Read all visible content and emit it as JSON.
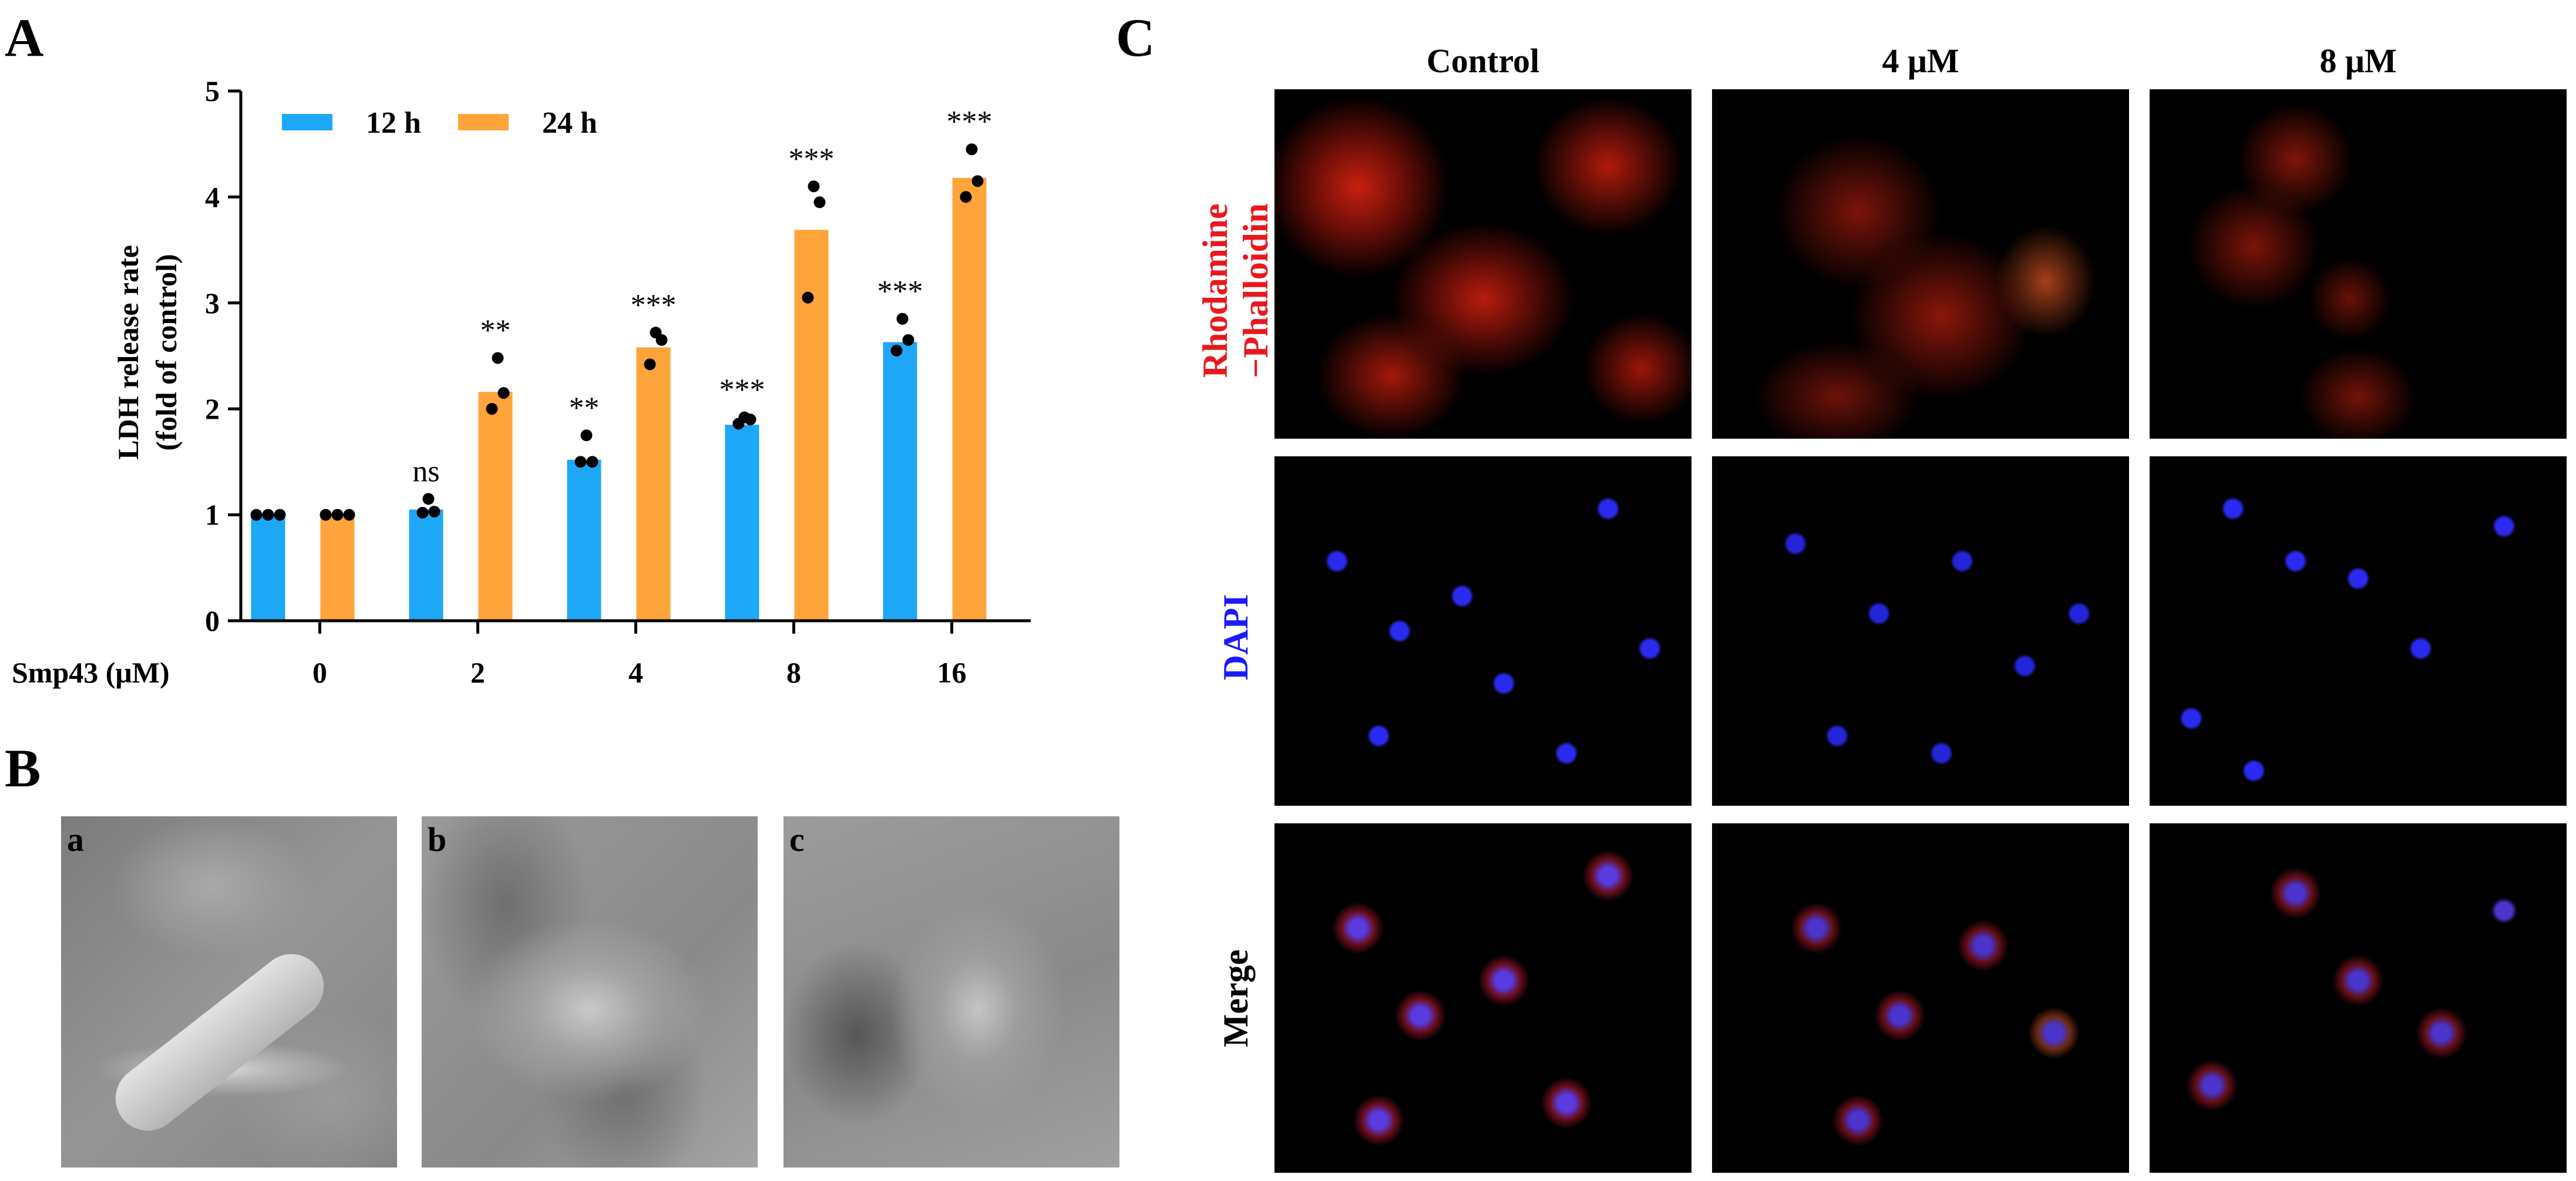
{
  "panels": {
    "a": "A",
    "b": "B",
    "c": "C"
  },
  "chart_data": {
    "type": "bar",
    "ylabel_line1": "LDH release rate",
    "ylabel_line2": "(fold of control)",
    "xlabel": "Smp43 (μM)",
    "categories": [
      "0",
      "2",
      "4",
      "8",
      "16"
    ],
    "ylim": [
      0,
      5
    ],
    "yticks": [
      "0",
      "1",
      "2",
      "3",
      "4",
      "5"
    ],
    "legend_position": "top-left",
    "series": [
      {
        "name": "12 h",
        "color": "#1ea7f7",
        "values": [
          1.0,
          1.05,
          1.52,
          1.85,
          2.63
        ],
        "points": [
          [
            1.0,
            1.0,
            1.0
          ],
          [
            1.02,
            1.03,
            1.15
          ],
          [
            1.5,
            1.5,
            1.75
          ],
          [
            1.86,
            1.9,
            1.92
          ],
          [
            2.55,
            2.65,
            2.85
          ]
        ],
        "sig": [
          "",
          "ns",
          "**",
          "***",
          "***"
        ]
      },
      {
        "name": "24 h",
        "color": "#ffa43a",
        "values": [
          1.0,
          2.16,
          2.58,
          3.69,
          4.18
        ],
        "points": [
          [
            1.0,
            1.0,
            1.0
          ],
          [
            2.0,
            2.15,
            2.48
          ],
          [
            2.42,
            2.65,
            2.72
          ],
          [
            3.05,
            3.95,
            4.1
          ],
          [
            4.0,
            4.15,
            4.45
          ]
        ],
        "sig": [
          "",
          "**",
          "***",
          "***",
          "***"
        ]
      }
    ]
  },
  "sem": {
    "labels": [
      "a",
      "b",
      "c"
    ]
  },
  "fluorescence": {
    "columns": [
      "Control",
      "4 μM",
      "8 μM"
    ],
    "rows": [
      {
        "line1": "Rhodamine",
        "line2": "−Phalloidin",
        "color": "#e8191e"
      },
      {
        "line1": "DAPI",
        "line2": "",
        "color": "#1a1aff"
      },
      {
        "line1": "Merge",
        "line2": "",
        "color": "#000000"
      }
    ]
  }
}
